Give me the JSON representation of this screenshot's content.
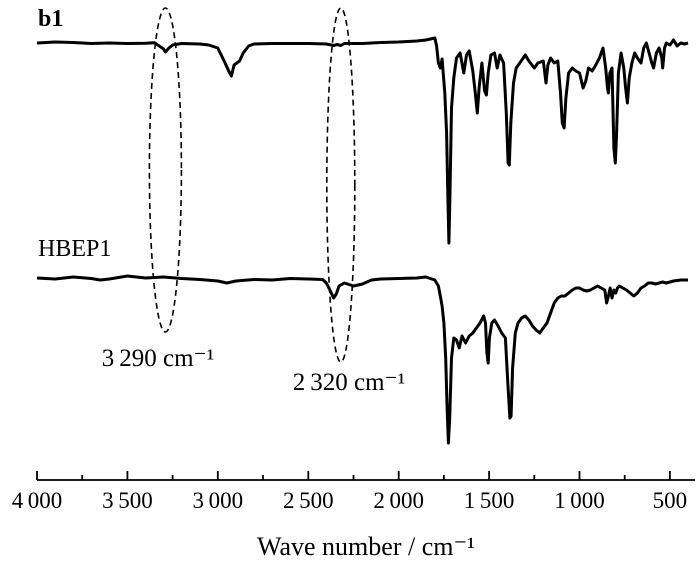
{
  "chart_data": {
    "type": "line",
    "xlabel": "Wave number / cm⁻¹",
    "xlim": [
      4000,
      400
    ],
    "x_ticks": [
      {
        "value": 4000,
        "label": "4 000"
      },
      {
        "value": 3500,
        "label": "3 500"
      },
      {
        "value": 3000,
        "label": "3 000"
      },
      {
        "value": 2500,
        "label": "2 500"
      },
      {
        "value": 2000,
        "label": "2 000"
      },
      {
        "value": 1500,
        "label": "1 500"
      },
      {
        "value": 1000,
        "label": "1 000"
      },
      {
        "value": 500,
        "label": "500"
      }
    ],
    "y_axis": "none",
    "grid": false,
    "series": [
      {
        "name": "b1",
        "style": "bold",
        "baseline": 0,
        "points": [
          [
            4000,
            0.0
          ],
          [
            3900,
            -1.0
          ],
          [
            3800,
            -0.5
          ],
          [
            3700,
            0.5
          ],
          [
            3600,
            0.0
          ],
          [
            3500,
            0.5
          ],
          [
            3400,
            0.3
          ],
          [
            3350,
            -0.2
          ],
          [
            3300,
            6.0
          ],
          [
            3290,
            9.0
          ],
          [
            3270,
            5.0
          ],
          [
            3250,
            2.0
          ],
          [
            3200,
            0.5
          ],
          [
            3100,
            1.0
          ],
          [
            3050,
            2.0
          ],
          [
            3000,
            5.0
          ],
          [
            2960,
            20.0
          ],
          [
            2940,
            28.0
          ],
          [
            2925,
            33.0
          ],
          [
            2910,
            22.0
          ],
          [
            2880,
            18.0
          ],
          [
            2860,
            10.0
          ],
          [
            2830,
            3.0
          ],
          [
            2800,
            1.0
          ],
          [
            2700,
            0.5
          ],
          [
            2600,
            0.5
          ],
          [
            2500,
            0.5
          ],
          [
            2400,
            1.0
          ],
          [
            2360,
            2.5
          ],
          [
            2340,
            1.5
          ],
          [
            2320,
            2.5
          ],
          [
            2300,
            0.5
          ],
          [
            2200,
            0.5
          ],
          [
            2100,
            -0.5
          ],
          [
            2000,
            -1.0
          ],
          [
            1900,
            -2.0
          ],
          [
            1850,
            -3.0
          ],
          [
            1800,
            -5.0
          ],
          [
            1790,
            3.0
          ],
          [
            1780,
            20.0
          ],
          [
            1770,
            25.0
          ],
          [
            1760,
            16.0
          ],
          [
            1745,
            50.0
          ],
          [
            1735,
            90.0
          ],
          [
            1728,
            155.0
          ],
          [
            1722,
            200.0
          ],
          [
            1716,
            150.0
          ],
          [
            1708,
            65.0
          ],
          [
            1695,
            35.0
          ],
          [
            1680,
            15.0
          ],
          [
            1660,
            10.0
          ],
          [
            1640,
            30.0
          ],
          [
            1625,
            12.0
          ],
          [
            1610,
            8.0
          ],
          [
            1590,
            28.0
          ],
          [
            1575,
            52.0
          ],
          [
            1565,
            70.0
          ],
          [
            1555,
            45.0
          ],
          [
            1540,
            20.0
          ],
          [
            1525,
            48.0
          ],
          [
            1515,
            52.0
          ],
          [
            1505,
            30.0
          ],
          [
            1490,
            12.0
          ],
          [
            1470,
            10.0
          ],
          [
            1455,
            25.0
          ],
          [
            1440,
            12.0
          ],
          [
            1420,
            20.0
          ],
          [
            1405,
            70.0
          ],
          [
            1395,
            120.0
          ],
          [
            1388,
            122.0
          ],
          [
            1380,
            80.0
          ],
          [
            1365,
            40.0
          ],
          [
            1350,
            25.0
          ],
          [
            1330,
            20.0
          ],
          [
            1300,
            12.0
          ],
          [
            1280,
            18.0
          ],
          [
            1250,
            25.0
          ],
          [
            1230,
            20.0
          ],
          [
            1200,
            18.0
          ],
          [
            1185,
            40.0
          ],
          [
            1175,
            22.0
          ],
          [
            1160,
            15.0
          ],
          [
            1140,
            20.0
          ],
          [
            1120,
            18.0
          ],
          [
            1105,
            50.0
          ],
          [
            1095,
            80.0
          ],
          [
            1085,
            85.0
          ],
          [
            1075,
            55.0
          ],
          [
            1060,
            30.0
          ],
          [
            1040,
            25.0
          ],
          [
            1020,
            28.0
          ],
          [
            1000,
            30.0
          ],
          [
            980,
            45.0
          ],
          [
            965,
            38.0
          ],
          [
            950,
            25.0
          ],
          [
            930,
            28.0
          ],
          [
            910,
            22.0
          ],
          [
            890,
            15.0
          ],
          [
            870,
            5.0
          ],
          [
            855,
            25.0
          ],
          [
            845,
            45.0
          ],
          [
            840,
            50.0
          ],
          [
            832,
            30.0
          ],
          [
            820,
            25.0
          ],
          [
            810,
            105.0
          ],
          [
            802,
            120.0
          ],
          [
            795,
            90.0
          ],
          [
            785,
            30.0
          ],
          [
            770,
            10.0
          ],
          [
            755,
            25.0
          ],
          [
            745,
            45.0
          ],
          [
            735,
            60.0
          ],
          [
            725,
            35.0
          ],
          [
            710,
            20.0
          ],
          [
            695,
            10.0
          ],
          [
            680,
            15.0
          ],
          [
            660,
            20.0
          ],
          [
            645,
            5.0
          ],
          [
            630,
            0.0
          ],
          [
            615,
            10.0
          ],
          [
            600,
            20.0
          ],
          [
            590,
            25.0
          ],
          [
            575,
            10.0
          ],
          [
            560,
            5.0
          ],
          [
            545,
            15.0
          ],
          [
            540,
            25.0
          ],
          [
            530,
            5.0
          ],
          [
            520,
            0.0
          ],
          [
            500,
            2.0
          ],
          [
            480,
            -3.0
          ],
          [
            460,
            3.0
          ],
          [
            440,
            0.0
          ],
          [
            420,
            1.0
          ],
          [
            400,
            0.0
          ]
        ]
      },
      {
        "name": "HBEP1",
        "style": "normal",
        "baseline": 0,
        "points": [
          [
            4000,
            0.0
          ],
          [
            3900,
            1.0
          ],
          [
            3800,
            -1.0
          ],
          [
            3700,
            0.5
          ],
          [
            3650,
            2.0
          ],
          [
            3600,
            1.0
          ],
          [
            3500,
            -2.0
          ],
          [
            3400,
            0.0
          ],
          [
            3300,
            -1.0
          ],
          [
            3200,
            0.5
          ],
          [
            3100,
            1.5
          ],
          [
            3000,
            3.0
          ],
          [
            2950,
            5.0
          ],
          [
            2900,
            3.0
          ],
          [
            2800,
            1.5
          ],
          [
            2700,
            2.0
          ],
          [
            2600,
            0.5
          ],
          [
            2500,
            1.0
          ],
          [
            2420,
            1.5
          ],
          [
            2400,
            5.0
          ],
          [
            2380,
            12.0
          ],
          [
            2360,
            20.0
          ],
          [
            2345,
            16.0
          ],
          [
            2330,
            8.0
          ],
          [
            2300,
            5.0
          ],
          [
            2250,
            8.0
          ],
          [
            2200,
            6.0
          ],
          [
            2150,
            2.0
          ],
          [
            2100,
            1.0
          ],
          [
            2000,
            0.5
          ],
          [
            1900,
            0.0
          ],
          [
            1850,
            -1.0
          ],
          [
            1800,
            2.0
          ],
          [
            1780,
            8.0
          ],
          [
            1770,
            18.0
          ],
          [
            1760,
            28.0
          ],
          [
            1750,
            45.0
          ],
          [
            1740,
            80.0
          ],
          [
            1732,
            130.0
          ],
          [
            1725,
            165.0
          ],
          [
            1718,
            140.0
          ],
          [
            1708,
            80.0
          ],
          [
            1695,
            60.0
          ],
          [
            1680,
            62.0
          ],
          [
            1665,
            70.0
          ],
          [
            1650,
            58.0
          ],
          [
            1630,
            65.0
          ],
          [
            1610,
            58.0
          ],
          [
            1590,
            55.0
          ],
          [
            1570,
            50.0
          ],
          [
            1550,
            45.0
          ],
          [
            1530,
            38.0
          ],
          [
            1520,
            45.0
          ],
          [
            1512,
            75.0
          ],
          [
            1505,
            85.0
          ],
          [
            1498,
            60.0
          ],
          [
            1485,
            45.0
          ],
          [
            1470,
            42.0
          ],
          [
            1450,
            48.0
          ],
          [
            1430,
            55.0
          ],
          [
            1410,
            60.0
          ],
          [
            1395,
            110.0
          ],
          [
            1385,
            140.0
          ],
          [
            1378,
            138.0
          ],
          [
            1370,
            90.0
          ],
          [
            1355,
            55.0
          ],
          [
            1340,
            45.0
          ],
          [
            1320,
            40.0
          ],
          [
            1300,
            38.0
          ],
          [
            1280,
            42.0
          ],
          [
            1260,
            48.0
          ],
          [
            1240,
            52.0
          ],
          [
            1220,
            55.0
          ],
          [
            1200,
            50.0
          ],
          [
            1180,
            45.0
          ],
          [
            1160,
            35.0
          ],
          [
            1140,
            25.0
          ],
          [
            1120,
            20.0
          ],
          [
            1100,
            18.0
          ],
          [
            1080,
            18.0
          ],
          [
            1060,
            15.0
          ],
          [
            1040,
            12.0
          ],
          [
            1020,
            10.0
          ],
          [
            1000,
            10.0
          ],
          [
            980,
            12.0
          ],
          [
            960,
            13.0
          ],
          [
            940,
            12.0
          ],
          [
            920,
            10.0
          ],
          [
            900,
            8.0
          ],
          [
            880,
            10.0
          ],
          [
            860,
            12.0
          ],
          [
            850,
            25.0
          ],
          [
            840,
            18.0
          ],
          [
            830,
            10.0
          ],
          [
            820,
            20.0
          ],
          [
            810,
            12.0
          ],
          [
            800,
            15.0
          ],
          [
            790,
            10.0
          ],
          [
            780,
            8.0
          ],
          [
            760,
            10.0
          ],
          [
            740,
            12.0
          ],
          [
            720,
            15.0
          ],
          [
            700,
            18.0
          ],
          [
            680,
            15.0
          ],
          [
            660,
            10.0
          ],
          [
            640,
            8.0
          ],
          [
            620,
            5.0
          ],
          [
            600,
            5.0
          ],
          [
            580,
            6.0
          ],
          [
            560,
            5.0
          ],
          [
            540,
            4.0
          ],
          [
            520,
            5.0
          ],
          [
            500,
            4.0
          ],
          [
            480,
            3.0
          ],
          [
            460,
            2.5
          ],
          [
            440,
            2.0
          ],
          [
            420,
            2.0
          ],
          [
            400,
            2.0
          ]
        ]
      }
    ],
    "annotations": [
      {
        "text": "3 290 cm⁻¹",
        "x": 3290
      },
      {
        "text": "2 320 cm⁻¹",
        "x": 2320
      }
    ]
  }
}
